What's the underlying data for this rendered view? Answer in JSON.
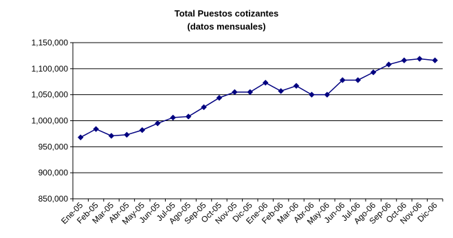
{
  "chart_data": {
    "type": "line",
    "title": "Total Puestos cotizantes",
    "subtitle": "(datos mensuales)",
    "xlabel": "",
    "ylabel": "",
    "ylim": [
      850000,
      1150000
    ],
    "y_ticks": [
      850000,
      900000,
      950000,
      1000000,
      1050000,
      1100000,
      1150000
    ],
    "y_tick_labels": [
      "850,000",
      "900,000",
      "950,000",
      "1,000,000",
      "1,050,000",
      "1,100,000",
      "1,150,000"
    ],
    "grid": true,
    "legend": "none",
    "categories": [
      "Ene-05",
      "Feb-05",
      "Mar-05",
      "Abr-05",
      "May-05",
      "Jun-05",
      "Jul-05",
      "Ago-05",
      "Sep-05",
      "Oct-05",
      "Nov-05",
      "Dic-05",
      "Ene-06",
      "Feb-06",
      "Mar-06",
      "Abr-06",
      "May-06",
      "Jun-06",
      "Jul-06",
      "Ago-06",
      "Sep-06",
      "Oct-06",
      "Nov-06",
      "Dic-06"
    ],
    "series": [
      {
        "color": "#000080",
        "marker": "diamond",
        "values": [
          968000,
          984000,
          971000,
          973000,
          982000,
          995000,
          1006000,
          1008000,
          1026000,
          1044000,
          1055000,
          1055000,
          1073000,
          1057000,
          1067000,
          1050000,
          1050000,
          1078000,
          1078000,
          1093000,
          1108000,
          1116000,
          1119000,
          1116000
        ]
      }
    ]
  }
}
